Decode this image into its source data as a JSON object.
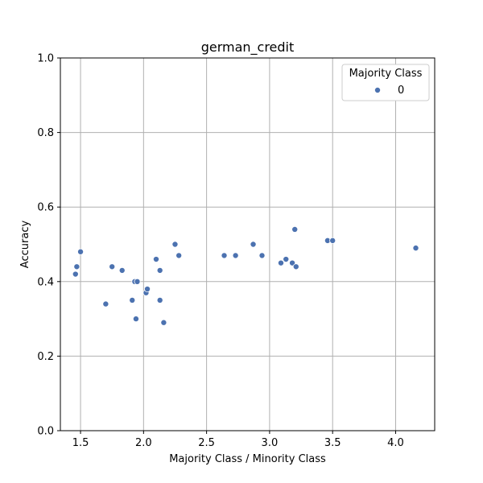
{
  "chart_data": {
    "type": "scatter",
    "title": "german_credit",
    "xlabel": "Majority Class / Minority Class",
    "ylabel": "Accuracy",
    "xlim": [
      1.34,
      4.31
    ],
    "ylim": [
      0.0,
      1.0
    ],
    "xticks": [
      "1.5",
      "2.0",
      "2.5",
      "3.0",
      "3.5",
      "4.0"
    ],
    "yticks": [
      "0.0",
      "0.2",
      "0.4",
      "0.6",
      "0.8",
      "1.0"
    ],
    "grid": true,
    "legend": {
      "title": "Majority Class",
      "placement": "top-right",
      "entries": [
        "0"
      ]
    },
    "series": [
      {
        "name": "0",
        "color": "#4c72b0",
        "points": [
          {
            "x": 1.46,
            "y": 0.42
          },
          {
            "x": 1.47,
            "y": 0.44
          },
          {
            "x": 1.5,
            "y": 0.48
          },
          {
            "x": 1.7,
            "y": 0.34
          },
          {
            "x": 1.75,
            "y": 0.44
          },
          {
            "x": 1.83,
            "y": 0.43
          },
          {
            "x": 1.91,
            "y": 0.35
          },
          {
            "x": 1.93,
            "y": 0.4
          },
          {
            "x": 1.94,
            "y": 0.3
          },
          {
            "x": 1.95,
            "y": 0.4
          },
          {
            "x": 2.02,
            "y": 0.37
          },
          {
            "x": 2.03,
            "y": 0.38
          },
          {
            "x": 2.1,
            "y": 0.46
          },
          {
            "x": 2.13,
            "y": 0.43
          },
          {
            "x": 2.13,
            "y": 0.35
          },
          {
            "x": 2.16,
            "y": 0.29
          },
          {
            "x": 2.25,
            "y": 0.5
          },
          {
            "x": 2.28,
            "y": 0.47
          },
          {
            "x": 2.64,
            "y": 0.47
          },
          {
            "x": 2.73,
            "y": 0.47
          },
          {
            "x": 2.87,
            "y": 0.5
          },
          {
            "x": 2.94,
            "y": 0.47
          },
          {
            "x": 3.09,
            "y": 0.45
          },
          {
            "x": 3.13,
            "y": 0.46
          },
          {
            "x": 3.18,
            "y": 0.45
          },
          {
            "x": 3.2,
            "y": 0.54
          },
          {
            "x": 3.21,
            "y": 0.44
          },
          {
            "x": 3.46,
            "y": 0.51
          },
          {
            "x": 3.5,
            "y": 0.51
          },
          {
            "x": 4.16,
            "y": 0.49
          }
        ]
      }
    ]
  }
}
